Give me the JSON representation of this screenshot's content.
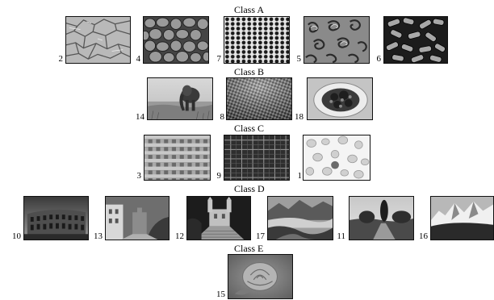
{
  "classes": [
    {
      "label": "Class A",
      "items": [
        {
          "number": "2",
          "subject": "cracked bark texture"
        },
        {
          "number": "4",
          "subject": "pebble cells texture"
        },
        {
          "number": "7",
          "subject": "perforated metal texture"
        },
        {
          "number": "5",
          "subject": "swirled shapes texture"
        },
        {
          "number": "6",
          "subject": "cylinders texture"
        }
      ]
    },
    {
      "label": "Class B",
      "items": [
        {
          "number": "14",
          "subject": "elephant in grassland"
        },
        {
          "number": "8",
          "subject": "woven mesh texture"
        },
        {
          "number": "18",
          "subject": "salad on plate"
        }
      ]
    },
    {
      "label": "Class C",
      "items": [
        {
          "number": "3",
          "subject": "woven cane texture"
        },
        {
          "number": "9",
          "subject": "plaid fabric texture"
        },
        {
          "number": "1",
          "subject": "blood cells"
        }
      ]
    },
    {
      "label": "Class D",
      "items": [
        {
          "number": "10",
          "subject": "colosseum"
        },
        {
          "number": "13",
          "subject": "city street"
        },
        {
          "number": "12",
          "subject": "church and steps"
        },
        {
          "number": "17",
          "subject": "mountain valley lake"
        },
        {
          "number": "11",
          "subject": "tree lined road"
        },
        {
          "number": "16",
          "subject": "snowy mountains"
        }
      ]
    },
    {
      "label": "Class E",
      "items": [
        {
          "number": "15",
          "subject": "rose"
        }
      ]
    }
  ]
}
